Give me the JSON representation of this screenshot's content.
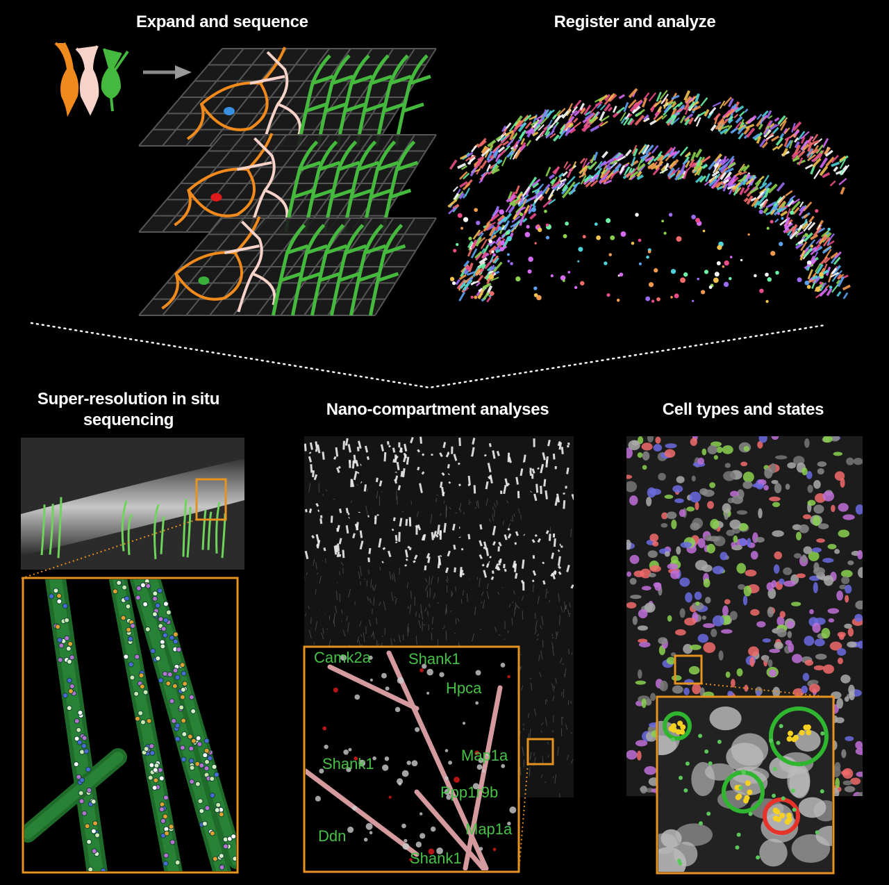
{
  "panels": {
    "expand": {
      "title": "Expand and sequence"
    },
    "register": {
      "title": "Register and analyze"
    },
    "super": {
      "title_line1": "Super-resolution in situ",
      "title_line2": "sequencing"
    },
    "nano": {
      "title": "Nano-compartment analyses",
      "gene_labels": [
        "Camk2a",
        "Shank1",
        "Hpca",
        "Shank1",
        "Map1a",
        "Ppp1r9b",
        "Map1a",
        "Ddn",
        "Shank1"
      ]
    },
    "cells": {
      "title": "Cell types and states"
    }
  },
  "colors": {
    "background": "#000000",
    "orange_neuron": "#f08a1c",
    "pink_neuron": "#f6d2c8",
    "green_neuron": "#44b93d",
    "inset_frame": "#e8921f",
    "label_green": "#46c146",
    "dotted_line": "#ffffff"
  },
  "icons": [
    "arrow-right-icon",
    "neuron-orange-icon",
    "neuron-pink-icon",
    "neuron-green-icon"
  ]
}
